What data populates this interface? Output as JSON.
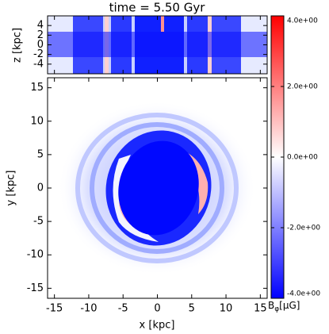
{
  "chart_data": {
    "type": "heatmap",
    "title": "time = 5.50 Gyr",
    "xlim": [
      -16,
      16
    ],
    "xticks": [
      -15,
      -10,
      -5,
      0,
      5,
      10,
      15
    ],
    "panels": [
      {
        "ylabel": "z [kpc]",
        "ylim": [
          -6,
          6
        ],
        "yticks": [
          -4,
          -2,
          0,
          2,
          4
        ]
      },
      {
        "xlabel": "x [kpc]",
        "ylabel": "y [kpc]",
        "ylim": [
          -16.5,
          16.5
        ],
        "yticks": [
          -15,
          -10,
          -5,
          0,
          5,
          10,
          15
        ]
      }
    ],
    "colorbar": {
      "label": "B",
      "label_sub": "φ",
      "label_unit": "[μG]",
      "lim": [
        -4,
        4
      ],
      "colors": [
        "#0000ff",
        "#ffffff",
        "#ff0000"
      ],
      "ticks": [
        {
          "value": -4,
          "label": "-4.0e+00"
        },
        {
          "value": -2,
          "label": "-2.0e+00"
        },
        {
          "value": 0,
          "label": "0.0e+00"
        },
        {
          "value": 2,
          "label": "2.0e+00"
        },
        {
          "value": 4,
          "label": "4.0e+00"
        }
      ]
    }
  }
}
